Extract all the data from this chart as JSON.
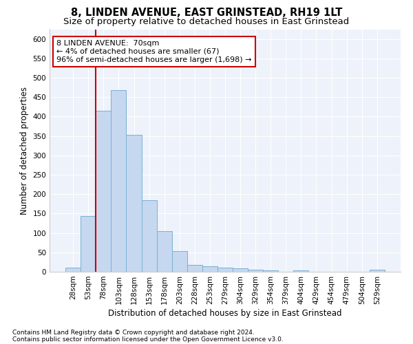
{
  "title": "8, LINDEN AVENUE, EAST GRINSTEAD, RH19 1LT",
  "subtitle": "Size of property relative to detached houses in East Grinstead",
  "xlabel": "Distribution of detached houses by size in East Grinstead",
  "ylabel": "Number of detached properties",
  "footnote1": "Contains HM Land Registry data © Crown copyright and database right 2024.",
  "footnote2": "Contains public sector information licensed under the Open Government Licence v3.0.",
  "annotation_line1": "8 LINDEN AVENUE:  70sqm",
  "annotation_line2": "← 4% of detached houses are smaller (67)",
  "annotation_line3": "96% of semi-detached houses are larger (1,698) →",
  "bar_color": "#c5d8ef",
  "bar_edge_color": "#7aafd4",
  "marker_color": "#cc0000",
  "background_color": "#eef2fa",
  "categories": [
    "28sqm",
    "53sqm",
    "78sqm",
    "103sqm",
    "128sqm",
    "153sqm",
    "178sqm",
    "203sqm",
    "228sqm",
    "253sqm",
    "279sqm",
    "304sqm",
    "329sqm",
    "354sqm",
    "379sqm",
    "404sqm",
    "429sqm",
    "454sqm",
    "479sqm",
    "504sqm",
    "529sqm"
  ],
  "values": [
    10,
    143,
    415,
    468,
    353,
    184,
    104,
    54,
    18,
    14,
    10,
    8,
    5,
    4,
    0,
    4,
    0,
    0,
    0,
    0,
    5
  ],
  "ylim": [
    0,
    625
  ],
  "yticks": [
    0,
    50,
    100,
    150,
    200,
    250,
    300,
    350,
    400,
    450,
    500,
    550,
    600
  ],
  "title_fontsize": 10.5,
  "subtitle_fontsize": 9.5,
  "axis_label_fontsize": 8.5,
  "tick_fontsize": 7.5,
  "annotation_fontsize": 8,
  "footnote_fontsize": 6.5
}
